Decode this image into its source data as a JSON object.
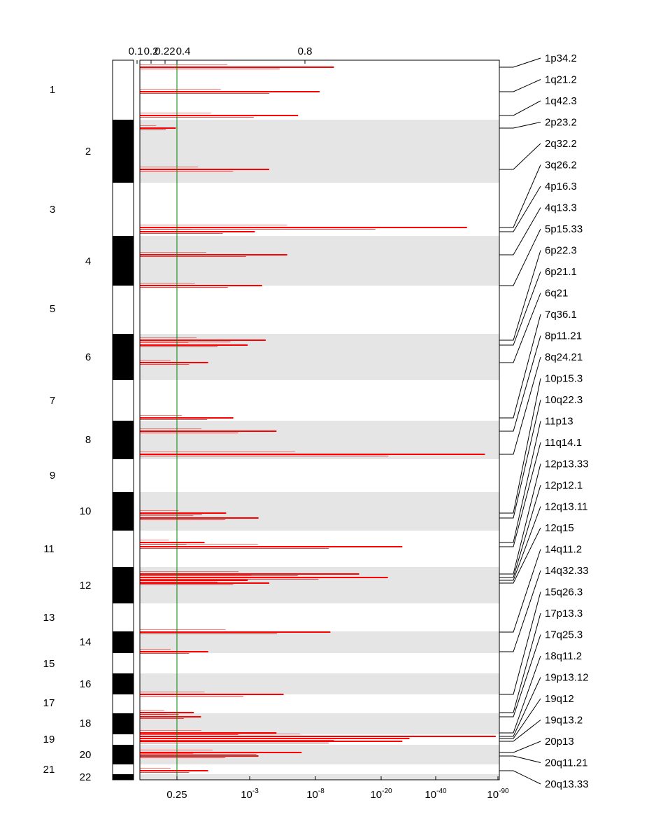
{
  "chart_data": {
    "type": "bar",
    "orientation": "horizontal",
    "colors": {
      "bar": "#ff0000",
      "threshold": "#008000",
      "band": "#e5e5e5",
      "ideogram_dark": "#000000",
      "ideogram_light": "#ffffff",
      "axis": "#000000"
    },
    "x_top_ticks": [
      "0.1",
      "0.2",
      "0.22",
      "0.4",
      "0.8"
    ],
    "x_bottom_ticks": [
      {
        "base": "0.25",
        "exp": ""
      },
      {
        "base": "10",
        "exp": "-3"
      },
      {
        "base": "10",
        "exp": "-8"
      },
      {
        "base": "10",
        "exp": "-20"
      },
      {
        "base": "10",
        "exp": "-40"
      },
      {
        "base": "10",
        "exp": "-90"
      }
    ],
    "threshold": {
      "q_value": 0.25,
      "label": "0.25"
    },
    "chromosomes": [
      {
        "label": "1",
        "shade": false
      },
      {
        "label": "2",
        "shade": true
      },
      {
        "label": "3",
        "shade": false
      },
      {
        "label": "4",
        "shade": true
      },
      {
        "label": "5",
        "shade": false
      },
      {
        "label": "6",
        "shade": true
      },
      {
        "label": "7",
        "shade": false
      },
      {
        "label": "8",
        "shade": true
      },
      {
        "label": "9",
        "shade": false
      },
      {
        "label": "10",
        "shade": true
      },
      {
        "label": "11",
        "shade": false
      },
      {
        "label": "12",
        "shade": true
      },
      {
        "label": "13",
        "shade": false
      },
      {
        "label": "14",
        "shade": true
      },
      {
        "label": "15",
        "shade": false
      },
      {
        "label": "16",
        "shade": true
      },
      {
        "label": "17",
        "shade": false
      },
      {
        "label": "18",
        "shade": true
      },
      {
        "label": "19",
        "shade": false
      },
      {
        "label": "20",
        "shade": true
      },
      {
        "label": "21",
        "shade": false
      },
      {
        "label": "22",
        "shade": true
      }
    ],
    "peaks": [
      {
        "label": "1p34.2",
        "chrom": "1",
        "q_position": 0.54
      },
      {
        "label": "1q21.2",
        "chrom": "1",
        "q_position": 0.5
      },
      {
        "label": "1q42.3",
        "chrom": "1",
        "q_position": 0.44
      },
      {
        "label": "2p23.2",
        "chrom": "2",
        "q_position": 0.1
      },
      {
        "label": "2q32.2",
        "chrom": "2",
        "q_position": 0.36
      },
      {
        "label": "3q26.2",
        "chrom": "3",
        "q_position": 0.91
      },
      {
        "label": "4p16.3",
        "chrom": "4",
        "q_position": 0.32
      },
      {
        "label": "4q13.3",
        "chrom": "4",
        "q_position": 0.41
      },
      {
        "label": "5p15.33",
        "chrom": "5",
        "q_position": 0.34
      },
      {
        "label": "6p22.3",
        "chrom": "6",
        "q_position": 0.35
      },
      {
        "label": "6p21.1",
        "chrom": "6",
        "q_position": 0.3
      },
      {
        "label": "6q21",
        "chrom": "6",
        "q_position": 0.19
      },
      {
        "label": "7q36.1",
        "chrom": "7",
        "q_position": 0.26
      },
      {
        "label": "8p11.21",
        "chrom": "8",
        "q_position": 0.38
      },
      {
        "label": "8q24.21",
        "chrom": "8",
        "q_position": 0.96
      },
      {
        "label": "10p15.3",
        "chrom": "10",
        "q_position": 0.24
      },
      {
        "label": "10q22.3",
        "chrom": "10",
        "q_position": 0.33
      },
      {
        "label": "11p13",
        "chrom": "11",
        "q_position": 0.18
      },
      {
        "label": "11q14.1",
        "chrom": "11",
        "q_position": 0.73
      },
      {
        "label": "12p13.33",
        "chrom": "12",
        "q_position": 0.61
      },
      {
        "label": "12p12.1",
        "chrom": "12",
        "q_position": 0.69
      },
      {
        "label": "12q13.11",
        "chrom": "12",
        "q_position": 0.3
      },
      {
        "label": "12q15",
        "chrom": "12",
        "q_position": 0.36
      },
      {
        "label": "14q11.2",
        "chrom": "14",
        "q_position": 0.53
      },
      {
        "label": "14q32.33",
        "chrom": "14",
        "q_position": 0.19
      },
      {
        "label": "15q26.3",
        "chrom": "15",
        "q_position": 0.4
      },
      {
        "label": "17p13.3",
        "chrom": "17",
        "q_position": 0.15
      },
      {
        "label": "17q25.3",
        "chrom": "17",
        "q_position": 0.17
      },
      {
        "label": "18q11.2",
        "chrom": "18",
        "q_position": 0.38
      },
      {
        "label": "19p13.12",
        "chrom": "19",
        "q_position": 0.99
      },
      {
        "label": "19q12",
        "chrom": "19",
        "q_position": 0.75
      },
      {
        "label": "19q13.2",
        "chrom": "19",
        "q_position": 0.73
      },
      {
        "label": "20p13",
        "chrom": "20",
        "q_position": 0.45
      },
      {
        "label": "20q11.21",
        "chrom": "20",
        "q_position": 0.33
      },
      {
        "label": "20q13.33",
        "chrom": "20",
        "q_position": 0.19
      }
    ]
  }
}
